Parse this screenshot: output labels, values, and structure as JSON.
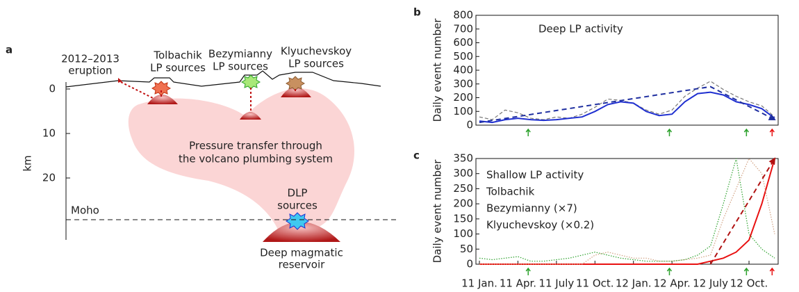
{
  "diagram": {
    "panel": "a",
    "eruption": [
      "2012–2013",
      "eruption"
    ],
    "tolbachik": [
      "Tolbachik",
      "LP sources"
    ],
    "bezymianny": [
      "Bezymianny",
      "LP sources"
    ],
    "klyuchevskoy": [
      "Klyuchevskoy",
      "LP sources"
    ],
    "pressure": [
      "Pressure transfer through",
      "the volcano plumbing system"
    ],
    "dlp": [
      "DLP",
      "sources"
    ],
    "moho": "Moho",
    "reservoir": [
      "Deep magmatic",
      "reservoir"
    ],
    "depth_label": "km",
    "depth_ticks": [
      0,
      10,
      20
    ]
  },
  "chart_data": [
    {
      "type": "line",
      "panel": "b",
      "title": "Deep LP activity",
      "y_label": "Daily event number",
      "x": [
        "2011-01",
        "2011-02",
        "2011-03",
        "2011-04",
        "2011-05",
        "2011-06",
        "2011-07",
        "2011-08",
        "2011-09",
        "2011-10",
        "2011-11",
        "2011-12",
        "2012-01",
        "2012-02",
        "2012-03",
        "2012-04",
        "2012-05",
        "2012-06",
        "2012-07",
        "2012-08",
        "2012-09",
        "2012-10",
        "2012-11",
        "2012-12"
      ],
      "ylim": [
        0,
        800
      ],
      "yticks": [
        0,
        100,
        200,
        300,
        400,
        500,
        600,
        700,
        800
      ],
      "series": [
        {
          "color": "#777777",
          "style": "dashed",
          "values": [
            60,
            40,
            110,
            90,
            50,
            40,
            60,
            50,
            80,
            130,
            190,
            180,
            160,
            110,
            80,
            110,
            210,
            270,
            320,
            260,
            210,
            170,
            140,
            60
          ]
        },
        {
          "color": "#1f2fd0",
          "style": "solid",
          "values": [
            30,
            20,
            40,
            50,
            40,
            35,
            40,
            50,
            60,
            100,
            150,
            170,
            160,
            100,
            70,
            80,
            170,
            230,
            240,
            220,
            170,
            150,
            120,
            50
          ]
        },
        {
          "color": "#1f2fa0",
          "style": "trend",
          "x": [
            "2011-01",
            "2012-07",
            "2012-12"
          ],
          "values": [
            20,
            280,
            40
          ]
        }
      ]
    },
    {
      "type": "line",
      "panel": "c",
      "title": "Shallow LP activity",
      "y_label": "Daily event number",
      "x": [
        "2011-01",
        "2011-02",
        "2011-03",
        "2011-04",
        "2011-05",
        "2011-06",
        "2011-07",
        "2011-08",
        "2011-09",
        "2011-10",
        "2011-11",
        "2011-12",
        "2012-01",
        "2012-02",
        "2012-03",
        "2012-04",
        "2012-05",
        "2012-06",
        "2012-07",
        "2012-08",
        "2012-09",
        "2012-10",
        "2012-11",
        "2012-12"
      ],
      "ylim": [
        0,
        350
      ],
      "yticks": [
        0,
        50,
        100,
        150,
        200,
        250,
        300,
        350
      ],
      "xticks": [
        {
          "value": "2011-01",
          "label": "11 Jan."
        },
        {
          "value": "2011-04",
          "label": "11 Apr."
        },
        {
          "value": "2011-07",
          "label": "11 July"
        },
        {
          "value": "2011-10",
          "label": "11 Oct."
        },
        {
          "value": "2012-01",
          "label": "12 Jan."
        },
        {
          "value": "2012-04",
          "label": "12 Apr."
        },
        {
          "value": "2012-07",
          "label": "12 July"
        },
        {
          "value": "2012-10",
          "label": "12 Oct."
        }
      ],
      "series": [
        {
          "name": "Tolbachik",
          "color": "#e81010",
          "style": "solid",
          "values": [
            0,
            0,
            0,
            0,
            0,
            0,
            0,
            0,
            0,
            0,
            0,
            0,
            0,
            0,
            0,
            0,
            0,
            0,
            10,
            20,
            40,
            80,
            200,
            350
          ]
        },
        {
          "name": "Bezymianny (×7)",
          "color": "#2aa02a",
          "style": "dotted",
          "values": [
            20,
            15,
            20,
            25,
            10,
            10,
            15,
            20,
            30,
            40,
            30,
            20,
            15,
            10,
            10,
            10,
            15,
            30,
            60,
            200,
            350,
            100,
            50,
            20
          ]
        },
        {
          "name": "Klyuchevskoy (×0.2)",
          "color": "#d0a080",
          "style": "dotted",
          "values": [
            0,
            0,
            0,
            0,
            0,
            0,
            0,
            0,
            0,
            30,
            40,
            30,
            20,
            20,
            10,
            10,
            15,
            20,
            30,
            150,
            250,
            350,
            300,
            100
          ]
        },
        {
          "color": "#b01010",
          "style": "trend",
          "x": [
            "2012-07",
            "2012-12"
          ],
          "values": [
            0,
            350
          ]
        }
      ]
    }
  ]
}
